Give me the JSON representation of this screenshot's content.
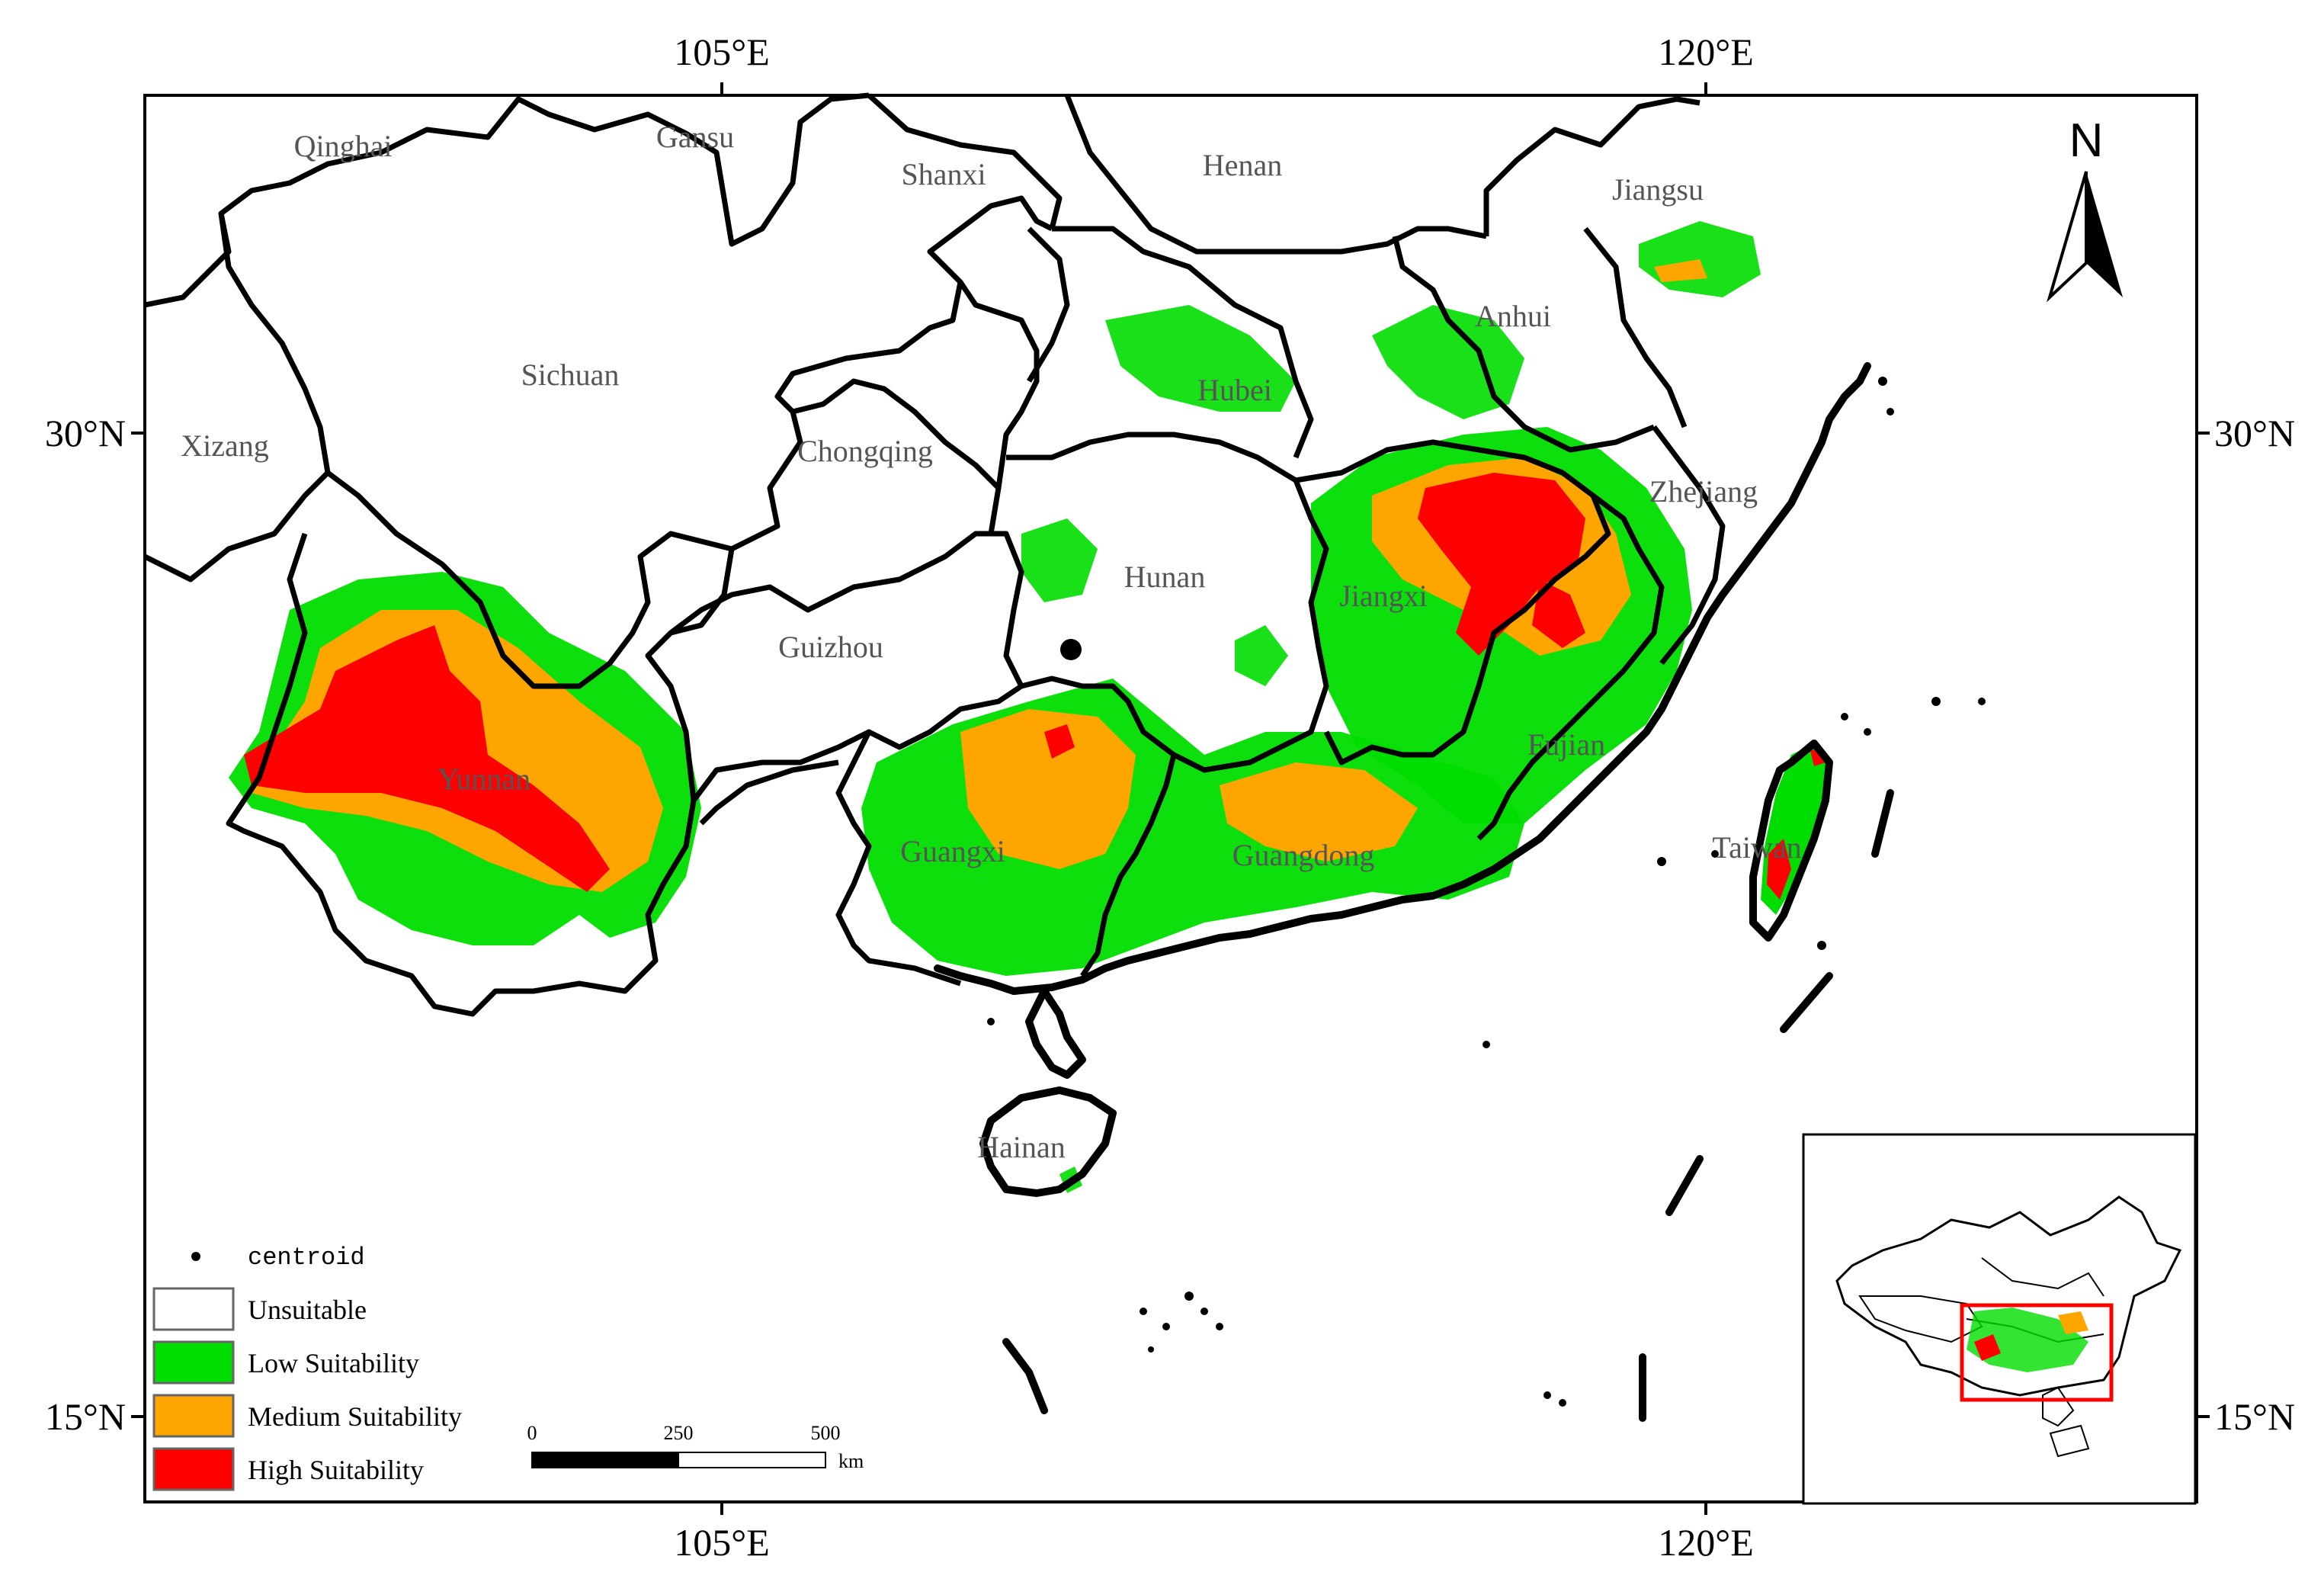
{
  "map": {
    "lon_labels_top": [
      "105°E",
      "120°E"
    ],
    "lon_labels_bottom": [
      "105°E",
      "120°E"
    ],
    "lat_labels_left": [
      "30°N",
      "15°N"
    ],
    "lat_labels_right": [
      "30°N",
      "15°N"
    ],
    "north_label": "N",
    "provinces": [
      {
        "name": "Qinghai"
      },
      {
        "name": "Gansu"
      },
      {
        "name": "Shanxi"
      },
      {
        "name": "Henan"
      },
      {
        "name": "Jiangsu"
      },
      {
        "name": "Anhui"
      },
      {
        "name": "Sichuan"
      },
      {
        "name": "Xizang"
      },
      {
        "name": "Hubei"
      },
      {
        "name": "Chongqing"
      },
      {
        "name": "Zhejiang"
      },
      {
        "name": "Hunan"
      },
      {
        "name": "Jiangxi"
      },
      {
        "name": "Guizhou"
      },
      {
        "name": "Yunnan"
      },
      {
        "name": "Fujian"
      },
      {
        "name": "Guangxi"
      },
      {
        "name": "Guangdong"
      },
      {
        "name": "Taiwan"
      },
      {
        "name": "Hainan"
      }
    ]
  },
  "legend": {
    "centroid_label": "centroid",
    "classes": [
      {
        "label": "Unsuitable",
        "color": "#ffffff"
      },
      {
        "label": "Low Suitability",
        "color": "#00dd00"
      },
      {
        "label": "Medium Suitability",
        "color": "#ffa500"
      },
      {
        "label": "High Suitability",
        "color": "#ff0000"
      }
    ]
  },
  "scale_bar": {
    "labels": [
      "0",
      "250",
      "500"
    ],
    "unit": "km"
  },
  "colors": {
    "inset_frame": "#ff0000",
    "boundary": "#000000"
  }
}
